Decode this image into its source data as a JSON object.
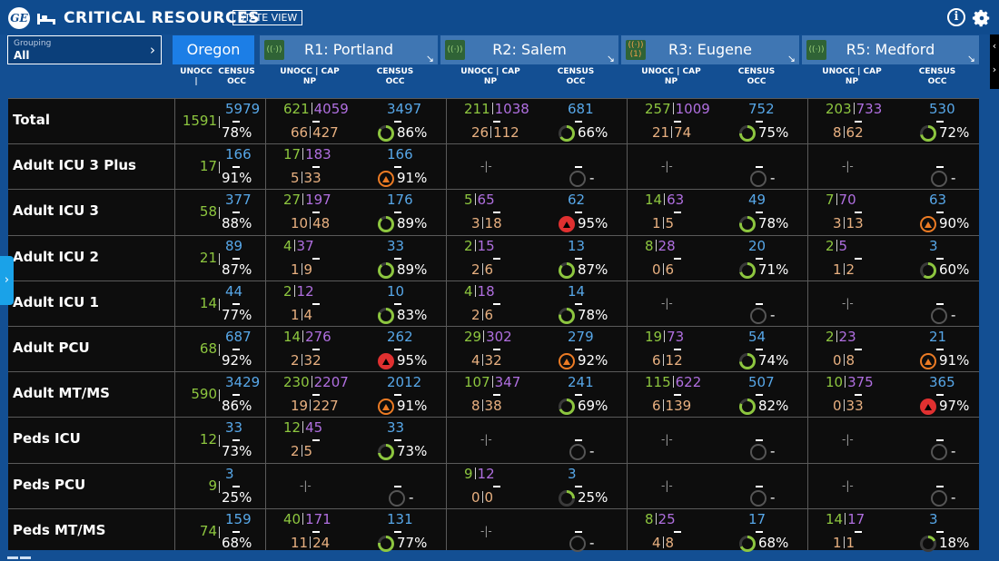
{
  "header": {
    "logo": "GE",
    "title": "CRITICAL RESOURCES",
    "state_view": "STATE VIEW",
    "info_icon": "i"
  },
  "grouping": {
    "label": "Grouping",
    "value": "All"
  },
  "regions": [
    {
      "name": "Oregon",
      "active": true
    },
    {
      "name": "R1: Portland",
      "signal": ""
    },
    {
      "name": "R2: Salem",
      "signal": ""
    },
    {
      "name": "R3: Eugene",
      "signal": "(1)"
    },
    {
      "name": "R5: Medford",
      "signal": ""
    }
  ],
  "column_headers": {
    "unocc": "UNOCC |",
    "census": "CENSUS",
    "occ": "OCC",
    "unocc_cap": "UNOCC | CAP",
    "np": "NP"
  },
  "colors": {
    "unocc": "#8dc63f",
    "cap": "#b06fe0",
    "np": "#e8b080",
    "census": "#57a7e8",
    "ring": "#8dc63f",
    "alert_orange": "#ec7b24",
    "alert_red": "#e03030"
  },
  "rows": [
    {
      "label": "Total",
      "oregon": {
        "unocc": "1591",
        "census": "5979",
        "occ": "78%"
      },
      "regions": [
        {
          "unocc": "621",
          "cap": "4059",
          "np": "66",
          "npcap": "427",
          "census": "3497",
          "occ": "86%",
          "status": "ok",
          "pct": 86
        },
        {
          "unocc": "211",
          "cap": "1038",
          "np": "26",
          "npcap": "112",
          "census": "681",
          "occ": "66%",
          "status": "ok",
          "pct": 66
        },
        {
          "unocc": "257",
          "cap": "1009",
          "np": "21",
          "npcap": "74",
          "census": "752",
          "occ": "75%",
          "status": "ok",
          "pct": 75
        },
        {
          "unocc": "203",
          "cap": "733",
          "np": "8",
          "npcap": "62",
          "census": "530",
          "occ": "72%",
          "status": "ok",
          "pct": 72
        }
      ]
    },
    {
      "label": "Adult ICU 3 Plus",
      "oregon": {
        "unocc": "17",
        "census": "166",
        "occ": "91%"
      },
      "regions": [
        {
          "unocc": "17",
          "cap": "183",
          "np": "5",
          "npcap": "33",
          "census": "166",
          "occ": "91%",
          "status": "orange",
          "pct": 91
        },
        {
          "empty": true,
          "occ": "-"
        },
        {
          "empty": true,
          "occ": "-"
        },
        {
          "empty": true,
          "occ": "-"
        }
      ]
    },
    {
      "label": "Adult ICU 3",
      "oregon": {
        "unocc": "58",
        "census": "377",
        "occ": "88%"
      },
      "regions": [
        {
          "unocc": "27",
          "cap": "197",
          "np": "10",
          "npcap": "48",
          "census": "176",
          "occ": "89%",
          "status": "ok",
          "pct": 89
        },
        {
          "unocc": "5",
          "cap": "65",
          "np": "3",
          "npcap": "18",
          "census": "62",
          "occ": "95%",
          "status": "red",
          "pct": 95
        },
        {
          "unocc": "14",
          "cap": "63",
          "np": "1",
          "npcap": "5",
          "census": "49",
          "occ": "78%",
          "status": "ok",
          "pct": 78
        },
        {
          "unocc": "7",
          "cap": "70",
          "np": "3",
          "npcap": "13",
          "census": "63",
          "occ": "90%",
          "status": "orange",
          "pct": 90
        }
      ]
    },
    {
      "label": "Adult ICU 2",
      "oregon": {
        "unocc": "21",
        "census": "89",
        "occ": "87%"
      },
      "regions": [
        {
          "unocc": "4",
          "cap": "37",
          "np": "1",
          "npcap": "9",
          "census": "33",
          "occ": "89%",
          "status": "ok",
          "pct": 89
        },
        {
          "unocc": "2",
          "cap": "15",
          "np": "2",
          "npcap": "6",
          "census": "13",
          "occ": "87%",
          "status": "ok",
          "pct": 87
        },
        {
          "unocc": "8",
          "cap": "28",
          "np": "0",
          "npcap": "6",
          "census": "20",
          "occ": "71%",
          "status": "ok",
          "pct": 71
        },
        {
          "unocc": "2",
          "cap": "5",
          "np": "1",
          "npcap": "2",
          "census": "3",
          "occ": "60%",
          "status": "ok",
          "pct": 60
        }
      ]
    },
    {
      "label": "Adult ICU 1",
      "oregon": {
        "unocc": "14",
        "census": "44",
        "occ": "77%"
      },
      "regions": [
        {
          "unocc": "2",
          "cap": "12",
          "np": "1",
          "npcap": "4",
          "census": "10",
          "occ": "83%",
          "status": "ok",
          "pct": 83
        },
        {
          "unocc": "4",
          "cap": "18",
          "np": "2",
          "npcap": "6",
          "census": "14",
          "occ": "78%",
          "status": "ok",
          "pct": 78
        },
        {
          "empty": true,
          "occ": "-"
        },
        {
          "empty": true,
          "occ": "-"
        }
      ]
    },
    {
      "label": "Adult PCU",
      "oregon": {
        "unocc": "68",
        "census": "687",
        "occ": "92%"
      },
      "regions": [
        {
          "unocc": "14",
          "cap": "276",
          "np": "2",
          "npcap": "32",
          "census": "262",
          "occ": "95%",
          "status": "red",
          "pct": 95
        },
        {
          "unocc": "29",
          "cap": "302",
          "np": "4",
          "npcap": "32",
          "census": "279",
          "occ": "92%",
          "status": "orange",
          "pct": 92
        },
        {
          "unocc": "19",
          "cap": "73",
          "np": "6",
          "npcap": "12",
          "census": "54",
          "occ": "74%",
          "status": "ok",
          "pct": 74
        },
        {
          "unocc": "2",
          "cap": "23",
          "np": "0",
          "npcap": "8",
          "census": "21",
          "occ": "91%",
          "status": "orange",
          "pct": 91
        }
      ]
    },
    {
      "label": "Adult MT/MS",
      "oregon": {
        "unocc": "590",
        "census": "3429",
        "occ": "86%"
      },
      "regions": [
        {
          "unocc": "230",
          "cap": "2207",
          "np": "19",
          "npcap": "227",
          "census": "2012",
          "occ": "91%",
          "status": "orange",
          "pct": 91
        },
        {
          "unocc": "107",
          "cap": "347",
          "np": "8",
          "npcap": "38",
          "census": "241",
          "occ": "69%",
          "status": "ok",
          "pct": 69
        },
        {
          "unocc": "115",
          "cap": "622",
          "np": "6",
          "npcap": "139",
          "census": "507",
          "occ": "82%",
          "status": "ok",
          "pct": 82
        },
        {
          "unocc": "10",
          "cap": "375",
          "np": "0",
          "npcap": "33",
          "census": "365",
          "occ": "97%",
          "status": "red",
          "pct": 97
        }
      ]
    },
    {
      "label": "Peds ICU",
      "oregon": {
        "unocc": "12",
        "census": "33",
        "occ": "73%"
      },
      "regions": [
        {
          "unocc": "12",
          "cap": "45",
          "np": "2",
          "npcap": "5",
          "census": "33",
          "occ": "73%",
          "status": "ok",
          "pct": 73
        },
        {
          "empty": true,
          "occ": "-"
        },
        {
          "empty": true,
          "occ": "-"
        },
        {
          "empty": true,
          "occ": "-"
        }
      ]
    },
    {
      "label": "Peds PCU",
      "oregon": {
        "unocc": "9",
        "census": "3",
        "occ": "25%"
      },
      "regions": [
        {
          "empty": true,
          "occ": "-"
        },
        {
          "unocc": "9",
          "cap": "12",
          "np": "0",
          "npcap": "0",
          "census": "3",
          "occ": "25%",
          "status": "ok",
          "pct": 25
        },
        {
          "empty": true,
          "occ": "-"
        },
        {
          "empty": true,
          "occ": "-"
        }
      ]
    },
    {
      "label": "Peds MT/MS",
      "oregon": {
        "unocc": "74",
        "census": "159",
        "occ": "68%"
      },
      "regions": [
        {
          "unocc": "40",
          "cap": "171",
          "np": "11",
          "npcap": "24",
          "census": "131",
          "occ": "77%",
          "status": "ok",
          "pct": 77
        },
        {
          "empty": true,
          "occ": "-"
        },
        {
          "unocc": "8",
          "cap": "25",
          "np": "4",
          "npcap": "8",
          "census": "17",
          "occ": "68%",
          "status": "ok",
          "pct": 68
        },
        {
          "unocc": "14",
          "cap": "17",
          "np": "1",
          "npcap": "1",
          "census": "3",
          "occ": "18%",
          "status": "ok",
          "pct": 18
        }
      ]
    }
  ]
}
